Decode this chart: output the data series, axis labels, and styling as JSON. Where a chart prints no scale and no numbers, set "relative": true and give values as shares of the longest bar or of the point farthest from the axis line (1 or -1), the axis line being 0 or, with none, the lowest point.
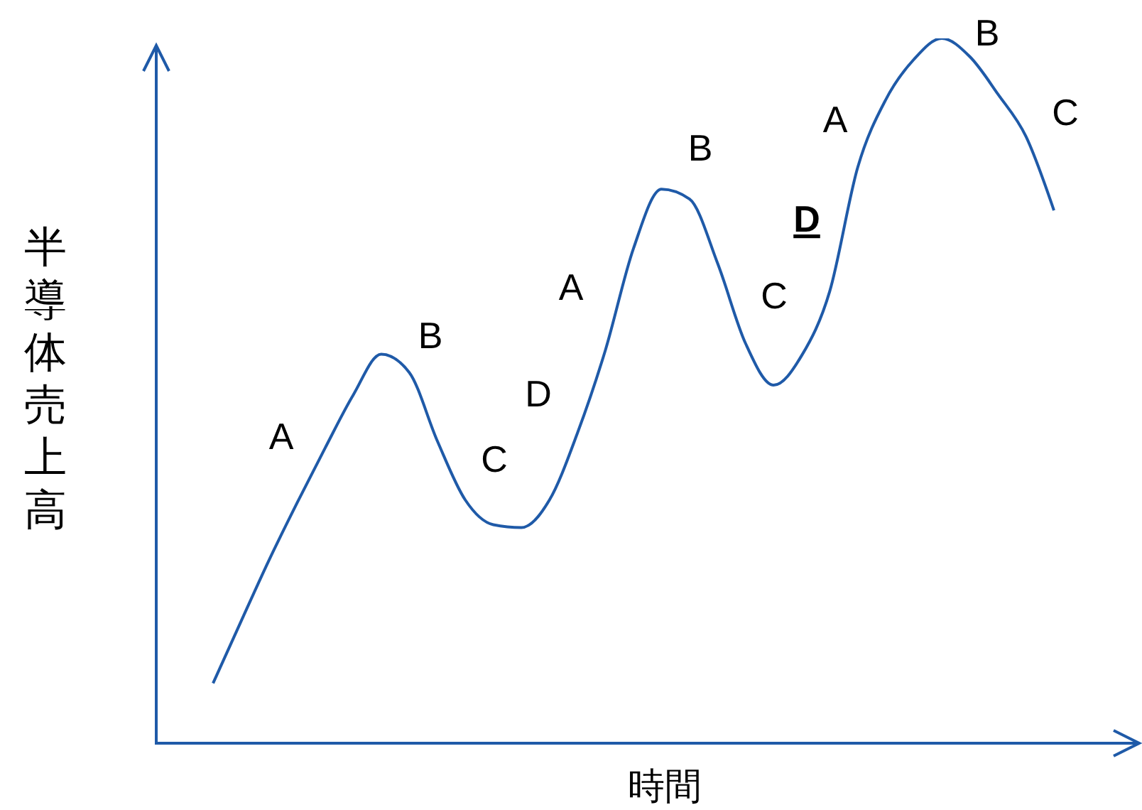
{
  "chart_data": {
    "type": "line",
    "relative": true,
    "xlabel": "時間",
    "ylabel": "半導体売上高",
    "categories": [
      null,
      null,
      null,
      null,
      null,
      null,
      null,
      null,
      null,
      null,
      null,
      null,
      null,
      null,
      null,
      null,
      null,
      null,
      null,
      null,
      null,
      null,
      null,
      null,
      null,
      null,
      null,
      null,
      null,
      null,
      null
    ],
    "series": [
      {
        "color": "#1f5aa8",
        "values": [
          0.085,
          0.173,
          0.26,
          0.341,
          0.419,
          0.494,
          0.552,
          0.526,
          0.429,
          0.345,
          0.31,
          0.306,
          0.345,
          0.44,
          0.558,
          0.702,
          0.786,
          0.772,
          0.681,
          0.567,
          0.508,
          0.55,
          0.641,
          0.817,
          0.913,
          0.97,
          1.0,
          0.974,
          0.921,
          0.861,
          0.756
        ]
      }
    ],
    "annotations": [
      "A",
      "B",
      "C",
      "D",
      "A",
      "B",
      "C",
      "D",
      "A",
      "B",
      "C"
    ],
    "legend": false,
    "grid": false,
    "marker": "none"
  }
}
